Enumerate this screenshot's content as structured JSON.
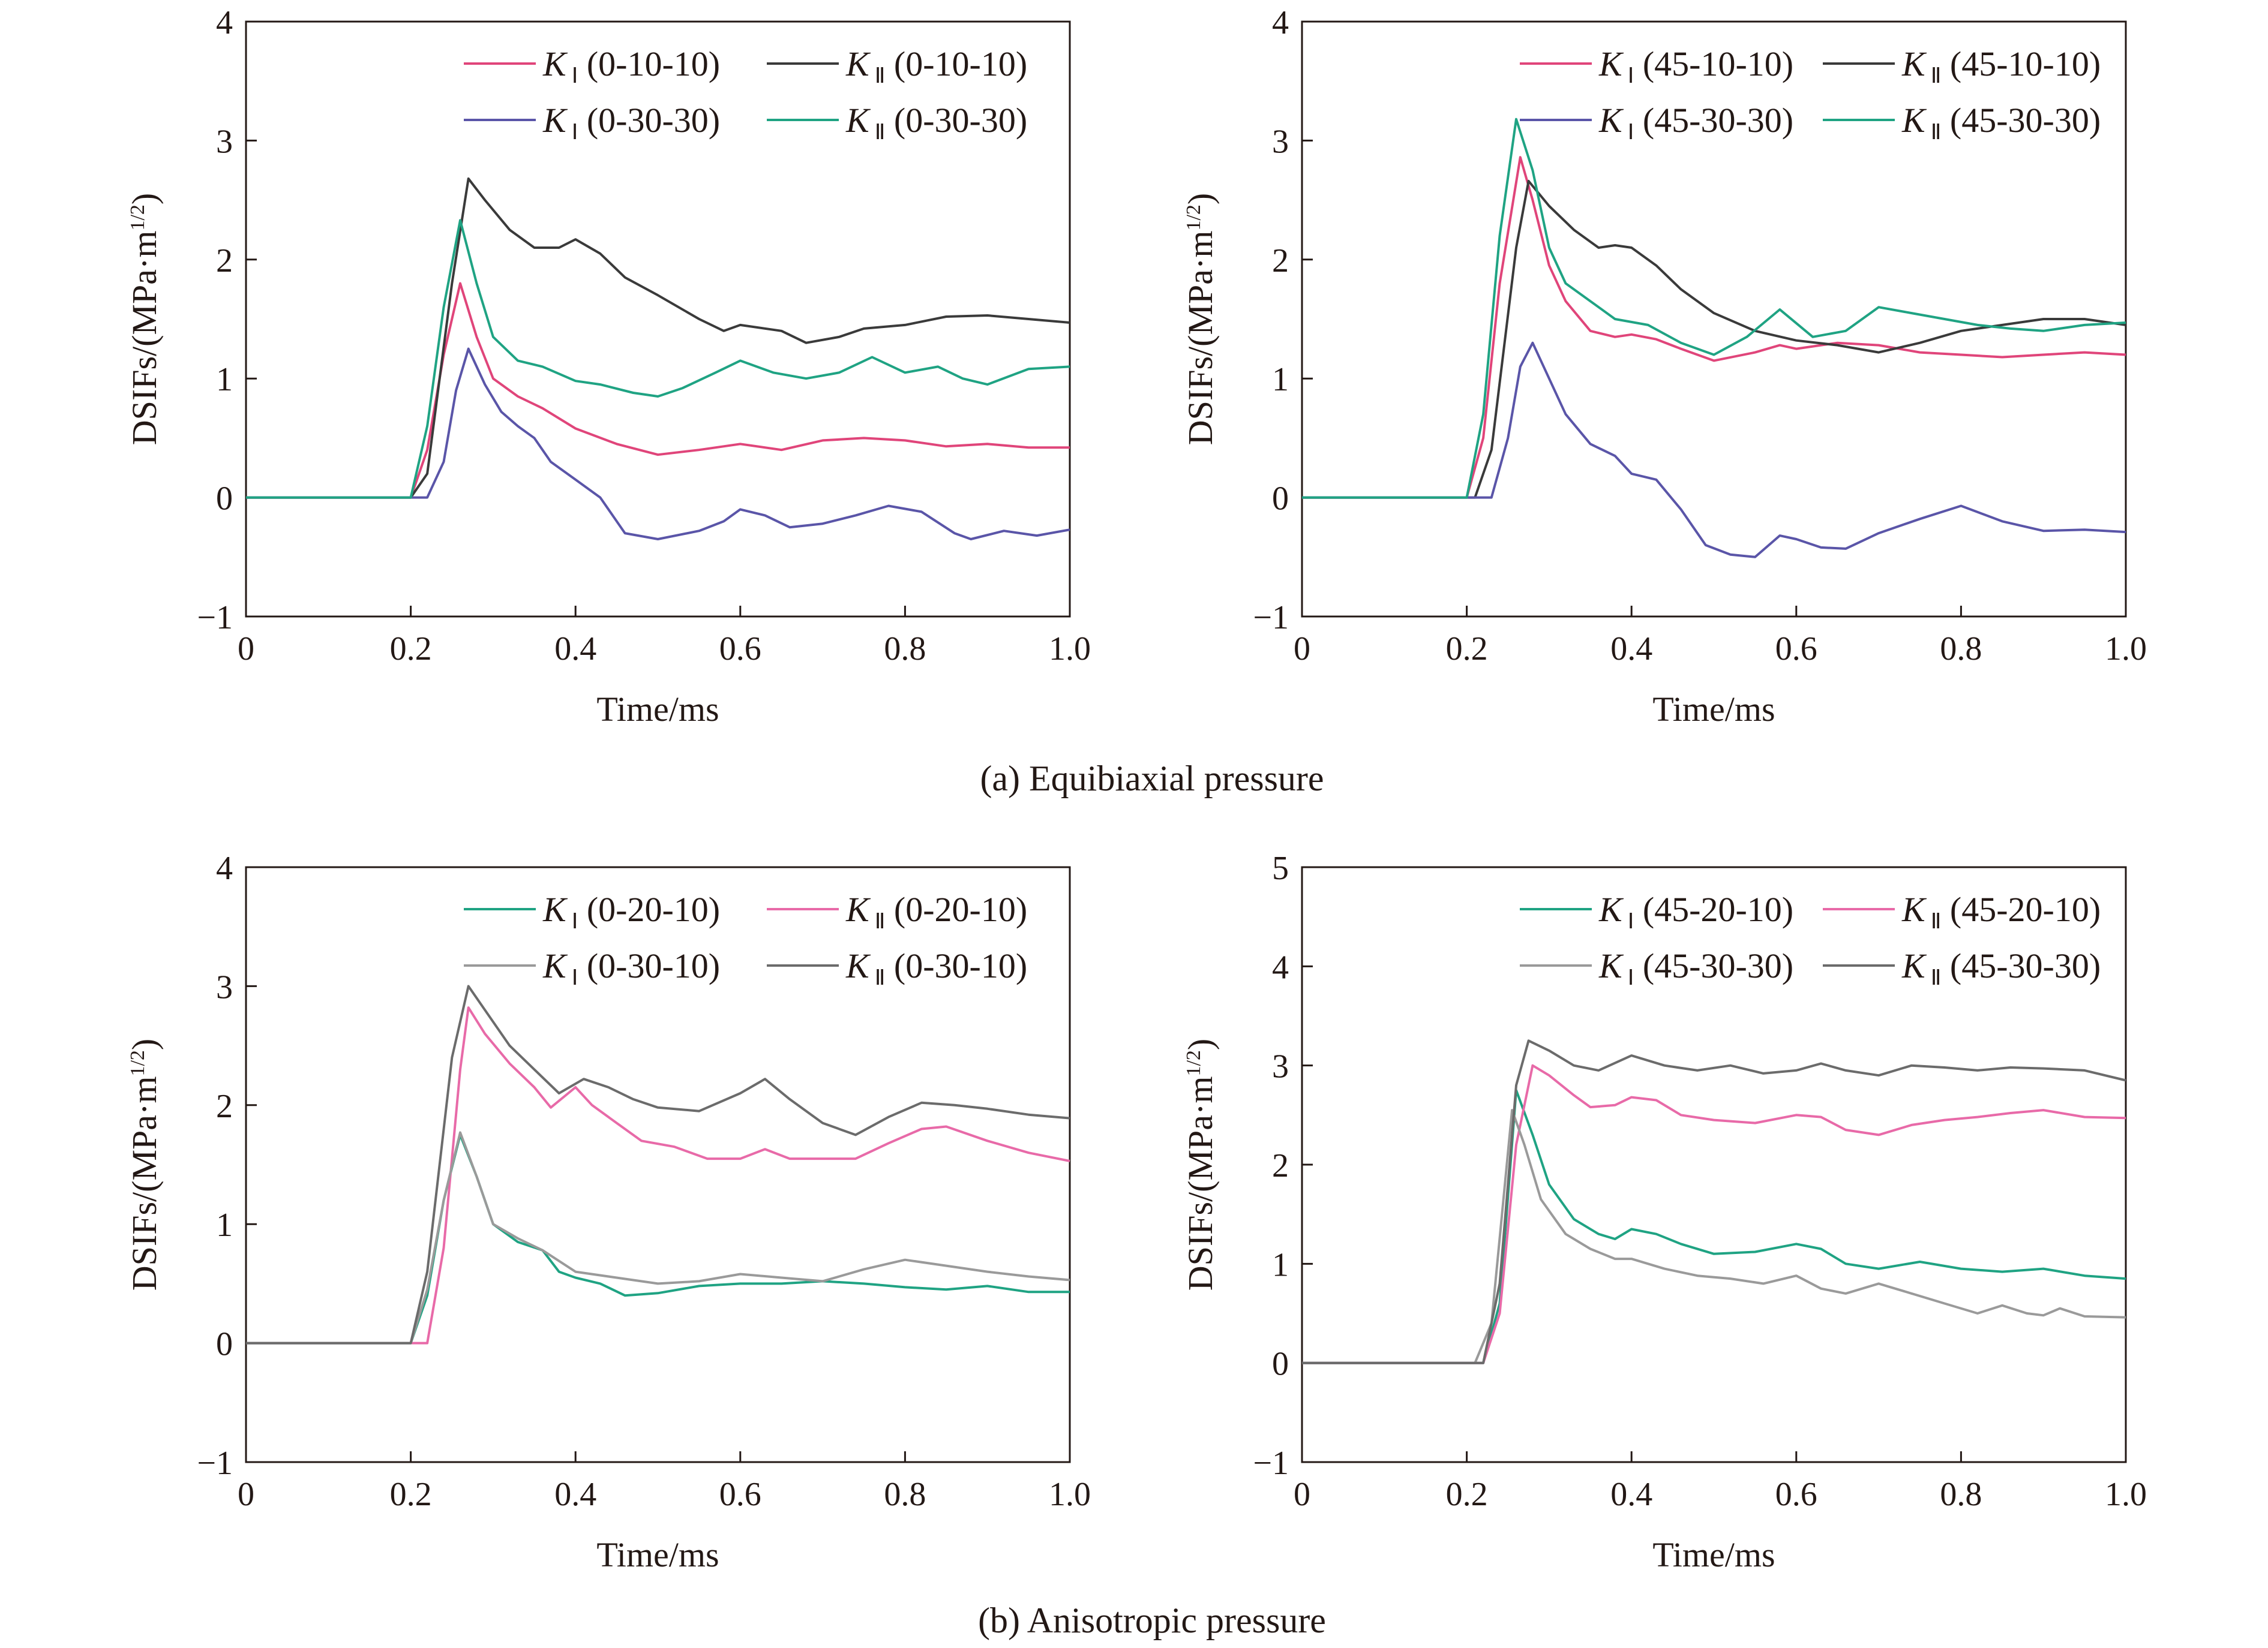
{
  "colors": {
    "red": "#e0457a",
    "black": "#3a3a3a",
    "blue": "#5a55a8",
    "teal": "#1fa383",
    "pink": "#e86aa8",
    "gray": "#9a9a9a",
    "darkgray": "#6b6b6b",
    "orange": "#e8923a"
  },
  "chart_data": [
    {
      "type": "line",
      "panel": "a-left",
      "xlabel": "Time/ms",
      "ylabel": "DSIFs/(MPa·m1/2)",
      "xlim": [
        0,
        1.0
      ],
      "ylim": [
        -1,
        4
      ],
      "xticks": [
        "0",
        "0.2",
        "0.4",
        "0.6",
        "0.8",
        "1.0"
      ],
      "yticks": [
        "−1",
        "0",
        "1",
        "2",
        "3",
        "4"
      ],
      "legend": "top-right",
      "series": [
        {
          "name": "K",
          "sub": "Ⅰ",
          "tag": "(0-10-10)",
          "color": "red",
          "x": [
            0,
            0.2,
            0.22,
            0.24,
            0.26,
            0.28,
            0.3,
            0.33,
            0.36,
            0.4,
            0.45,
            0.5,
            0.55,
            0.6,
            0.65,
            0.7,
            0.75,
            0.8,
            0.85,
            0.9,
            0.95,
            1.0
          ],
          "y": [
            0,
            0,
            0.4,
            1.2,
            1.8,
            1.35,
            1.0,
            0.85,
            0.75,
            0.58,
            0.45,
            0.36,
            0.4,
            0.45,
            0.4,
            0.48,
            0.5,
            0.48,
            0.43,
            0.45,
            0.42,
            0.42
          ]
        },
        {
          "name": "K",
          "sub": "Ⅱ",
          "tag": "(0-10-10)",
          "color": "black",
          "x": [
            0,
            0.2,
            0.22,
            0.25,
            0.27,
            0.29,
            0.32,
            0.35,
            0.38,
            0.4,
            0.43,
            0.46,
            0.5,
            0.55,
            0.58,
            0.6,
            0.65,
            0.68,
            0.72,
            0.75,
            0.8,
            0.85,
            0.9,
            0.95,
            1.0
          ],
          "y": [
            0,
            0,
            0.2,
            1.8,
            2.68,
            2.5,
            2.25,
            2.1,
            2.1,
            2.17,
            2.05,
            1.85,
            1.7,
            1.5,
            1.4,
            1.45,
            1.4,
            1.3,
            1.35,
            1.42,
            1.45,
            1.52,
            1.53,
            1.5,
            1.47
          ]
        },
        {
          "name": "K",
          "sub": "Ⅰ",
          "tag": "(0-30-30)",
          "color": "blue",
          "x": [
            0,
            0.22,
            0.24,
            0.255,
            0.27,
            0.29,
            0.31,
            0.33,
            0.35,
            0.37,
            0.4,
            0.43,
            0.46,
            0.5,
            0.55,
            0.58,
            0.6,
            0.63,
            0.66,
            0.7,
            0.74,
            0.78,
            0.82,
            0.86,
            0.88,
            0.92,
            0.96,
            1.0
          ],
          "y": [
            0,
            0,
            0.3,
            0.9,
            1.25,
            0.95,
            0.72,
            0.6,
            0.5,
            0.3,
            0.15,
            0.0,
            -0.3,
            -0.35,
            -0.28,
            -0.2,
            -0.1,
            -0.15,
            -0.25,
            -0.22,
            -0.15,
            -0.07,
            -0.12,
            -0.3,
            -0.35,
            -0.28,
            -0.32,
            -0.27
          ]
        },
        {
          "name": "K",
          "sub": "Ⅱ",
          "tag": "(0-30-30)",
          "color": "teal",
          "x": [
            0,
            0.2,
            0.22,
            0.24,
            0.26,
            0.28,
            0.3,
            0.33,
            0.36,
            0.4,
            0.43,
            0.47,
            0.5,
            0.53,
            0.57,
            0.6,
            0.64,
            0.68,
            0.72,
            0.76,
            0.8,
            0.84,
            0.87,
            0.9,
            0.95,
            1.0
          ],
          "y": [
            0,
            0,
            0.6,
            1.6,
            2.33,
            1.8,
            1.35,
            1.15,
            1.1,
            0.98,
            0.95,
            0.88,
            0.85,
            0.92,
            1.05,
            1.15,
            1.05,
            1.0,
            1.05,
            1.18,
            1.05,
            1.1,
            1.0,
            0.95,
            1.08,
            1.1
          ]
        }
      ]
    },
    {
      "type": "line",
      "panel": "a-right",
      "xlabel": "Time/ms",
      "ylabel": "DSIFs/(MPa·m1/2)",
      "xlim": [
        0,
        1.0
      ],
      "ylim": [
        -1,
        4
      ],
      "xticks": [
        "0",
        "0.2",
        "0.4",
        "0.6",
        "0.8",
        "1.0"
      ],
      "yticks": [
        "−1",
        "0",
        "1",
        "2",
        "3",
        "4"
      ],
      "legend": "top-right",
      "series": [
        {
          "name": "K",
          "sub": "Ⅰ",
          "tag": "(45-10-10)",
          "color": "red",
          "x": [
            0,
            0.2,
            0.22,
            0.24,
            0.265,
            0.28,
            0.3,
            0.32,
            0.35,
            0.38,
            0.4,
            0.43,
            0.46,
            0.5,
            0.55,
            0.58,
            0.6,
            0.65,
            0.7,
            0.75,
            0.8,
            0.85,
            0.9,
            0.95,
            1.0
          ],
          "y": [
            0,
            0,
            0.5,
            1.8,
            2.86,
            2.5,
            1.95,
            1.65,
            1.4,
            1.35,
            1.37,
            1.33,
            1.25,
            1.15,
            1.22,
            1.28,
            1.25,
            1.3,
            1.28,
            1.22,
            1.2,
            1.18,
            1.2,
            1.22,
            1.2
          ]
        },
        {
          "name": "K",
          "sub": "Ⅱ",
          "tag": "(45-10-10)",
          "color": "black",
          "x": [
            0,
            0.21,
            0.23,
            0.26,
            0.275,
            0.3,
            0.33,
            0.36,
            0.38,
            0.4,
            0.43,
            0.46,
            0.5,
            0.55,
            0.6,
            0.65,
            0.7,
            0.75,
            0.8,
            0.85,
            0.9,
            0.95,
            1.0
          ],
          "y": [
            0,
            0,
            0.4,
            2.1,
            2.66,
            2.45,
            2.25,
            2.1,
            2.12,
            2.1,
            1.95,
            1.75,
            1.55,
            1.4,
            1.32,
            1.28,
            1.22,
            1.3,
            1.4,
            1.45,
            1.5,
            1.5,
            1.45
          ]
        },
        {
          "name": "K",
          "sub": "Ⅰ",
          "tag": "(45-30-30)",
          "color": "blue",
          "x": [
            0,
            0.23,
            0.25,
            0.265,
            0.28,
            0.3,
            0.32,
            0.35,
            0.38,
            0.4,
            0.43,
            0.46,
            0.49,
            0.52,
            0.55,
            0.58,
            0.6,
            0.63,
            0.66,
            0.7,
            0.75,
            0.8,
            0.85,
            0.9,
            0.95,
            1.0
          ],
          "y": [
            0,
            0,
            0.5,
            1.1,
            1.3,
            1.0,
            0.7,
            0.45,
            0.35,
            0.2,
            0.15,
            -0.1,
            -0.4,
            -0.48,
            -0.5,
            -0.32,
            -0.35,
            -0.42,
            -0.43,
            -0.3,
            -0.18,
            -0.07,
            -0.2,
            -0.28,
            -0.27,
            -0.29
          ]
        },
        {
          "name": "K",
          "sub": "Ⅱ",
          "tag": "(45-30-30)",
          "color": "teal",
          "x": [
            0,
            0.2,
            0.22,
            0.24,
            0.26,
            0.28,
            0.3,
            0.32,
            0.35,
            0.38,
            0.42,
            0.46,
            0.5,
            0.54,
            0.58,
            0.62,
            0.66,
            0.7,
            0.74,
            0.78,
            0.82,
            0.86,
            0.9,
            0.95,
            1.0
          ],
          "y": [
            0,
            0,
            0.7,
            2.2,
            3.18,
            2.75,
            2.1,
            1.8,
            1.65,
            1.5,
            1.45,
            1.3,
            1.2,
            1.35,
            1.58,
            1.35,
            1.4,
            1.6,
            1.55,
            1.5,
            1.45,
            1.42,
            1.4,
            1.45,
            1.47
          ]
        }
      ]
    },
    {
      "type": "line",
      "panel": "b-left",
      "xlabel": "Time/ms",
      "ylabel": "DSIFs/(MPa·m1/2)",
      "xlim": [
        0,
        1.0
      ],
      "ylim": [
        -1,
        4
      ],
      "xticks": [
        "0",
        "0.2",
        "0.4",
        "0.6",
        "0.8",
        "1.0"
      ],
      "yticks": [
        "−1",
        "0",
        "1",
        "2",
        "3",
        "4"
      ],
      "legend": "top-right",
      "series": [
        {
          "name": "K",
          "sub": "Ⅰ",
          "tag": "(0-20-10)",
          "color": "teal",
          "x": [
            0,
            0.2,
            0.22,
            0.24,
            0.26,
            0.28,
            0.3,
            0.33,
            0.36,
            0.38,
            0.4,
            0.43,
            0.46,
            0.5,
            0.55,
            0.6,
            0.65,
            0.7,
            0.75,
            0.8,
            0.85,
            0.9,
            0.95,
            1.0
          ],
          "y": [
            0,
            0,
            0.4,
            1.2,
            1.75,
            1.4,
            1.0,
            0.85,
            0.78,
            0.6,
            0.55,
            0.5,
            0.4,
            0.42,
            0.48,
            0.5,
            0.5,
            0.52,
            0.5,
            0.47,
            0.45,
            0.48,
            0.43,
            0.43
          ]
        },
        {
          "name": "K",
          "sub": "Ⅱ",
          "tag": "(0-20-10)",
          "color": "pink",
          "x": [
            0,
            0.22,
            0.24,
            0.26,
            0.27,
            0.29,
            0.32,
            0.35,
            0.37,
            0.4,
            0.42,
            0.45,
            0.48,
            0.52,
            0.56,
            0.6,
            0.63,
            0.66,
            0.7,
            0.74,
            0.78,
            0.82,
            0.85,
            0.9,
            0.95,
            1.0
          ],
          "y": [
            0,
            0,
            0.8,
            2.3,
            2.82,
            2.6,
            2.35,
            2.15,
            1.98,
            2.15,
            2.0,
            1.85,
            1.7,
            1.65,
            1.55,
            1.55,
            1.63,
            1.55,
            1.55,
            1.55,
            1.68,
            1.8,
            1.82,
            1.7,
            1.6,
            1.53
          ]
        },
        {
          "name": "K",
          "sub": "Ⅰ",
          "tag": "(0-30-10)",
          "color": "gray",
          "x": [
            0,
            0.2,
            0.22,
            0.24,
            0.26,
            0.28,
            0.3,
            0.33,
            0.36,
            0.4,
            0.45,
            0.5,
            0.55,
            0.6,
            0.65,
            0.7,
            0.75,
            0.8,
            0.85,
            0.9,
            0.95,
            1.0
          ],
          "y": [
            0,
            0,
            0.45,
            1.2,
            1.77,
            1.4,
            1.0,
            0.88,
            0.78,
            0.6,
            0.55,
            0.5,
            0.52,
            0.58,
            0.55,
            0.52,
            0.62,
            0.7,
            0.65,
            0.6,
            0.56,
            0.53
          ]
        },
        {
          "name": "K",
          "sub": "Ⅱ",
          "tag": "(0-30-10)",
          "color": "darkgray",
          "x": [
            0,
            0.2,
            0.22,
            0.25,
            0.27,
            0.29,
            0.32,
            0.35,
            0.38,
            0.41,
            0.44,
            0.47,
            0.5,
            0.55,
            0.6,
            0.63,
            0.66,
            0.7,
            0.74,
            0.78,
            0.82,
            0.86,
            0.9,
            0.95,
            1.0
          ],
          "y": [
            0,
            0,
            0.6,
            2.4,
            3.0,
            2.8,
            2.5,
            2.3,
            2.1,
            2.22,
            2.15,
            2.05,
            1.98,
            1.95,
            2.1,
            2.22,
            2.05,
            1.85,
            1.75,
            1.9,
            2.02,
            2.0,
            1.97,
            1.92,
            1.89
          ]
        }
      ]
    },
    {
      "type": "line",
      "panel": "b-right",
      "xlabel": "Time/ms",
      "ylabel": "DSIFs/(MPa·m1/2)",
      "xlim": [
        0,
        1.0
      ],
      "ylim": [
        -1,
        5
      ],
      "xticks": [
        "0",
        "0.2",
        "0.4",
        "0.6",
        "0.8",
        "1.0"
      ],
      "yticks": [
        "−1",
        "0",
        "1",
        "2",
        "3",
        "4",
        "5"
      ],
      "legend": "top-right",
      "series": [
        {
          "name": "K",
          "sub": "Ⅰ",
          "tag": "(45-20-10)",
          "color": "teal",
          "x": [
            0,
            0.22,
            0.24,
            0.26,
            0.28,
            0.3,
            0.33,
            0.36,
            0.38,
            0.4,
            0.43,
            0.46,
            0.5,
            0.55,
            0.6,
            0.63,
            0.66,
            0.7,
            0.75,
            0.8,
            0.85,
            0.9,
            0.95,
            1.0
          ],
          "y": [
            0,
            0,
            0.6,
            2.75,
            2.3,
            1.8,
            1.45,
            1.3,
            1.25,
            1.35,
            1.3,
            1.2,
            1.1,
            1.12,
            1.2,
            1.15,
            1.0,
            0.95,
            1.02,
            0.95,
            0.92,
            0.95,
            0.88,
            0.85
          ]
        },
        {
          "name": "K",
          "sub": "Ⅱ",
          "tag": "(45-20-10)",
          "color": "pink",
          "x": [
            0,
            0.22,
            0.24,
            0.26,
            0.28,
            0.3,
            0.33,
            0.35,
            0.38,
            0.4,
            0.43,
            0.46,
            0.5,
            0.55,
            0.6,
            0.63,
            0.66,
            0.7,
            0.74,
            0.78,
            0.82,
            0.86,
            0.9,
            0.95,
            1.0
          ],
          "y": [
            0,
            0,
            0.5,
            2.2,
            3.0,
            2.9,
            2.7,
            2.58,
            2.6,
            2.68,
            2.65,
            2.5,
            2.45,
            2.42,
            2.5,
            2.48,
            2.35,
            2.3,
            2.4,
            2.45,
            2.48,
            2.52,
            2.55,
            2.48,
            2.47
          ]
        },
        {
          "name": "K",
          "sub": "Ⅰ",
          "tag": "(45-30-30)",
          "color": "gray",
          "x": [
            0,
            0.21,
            0.23,
            0.255,
            0.27,
            0.29,
            0.32,
            0.35,
            0.38,
            0.4,
            0.44,
            0.48,
            0.52,
            0.56,
            0.6,
            0.63,
            0.66,
            0.7,
            0.74,
            0.78,
            0.82,
            0.85,
            0.88,
            0.9,
            0.92,
            0.95,
            1.0
          ],
          "y": [
            0,
            0,
            0.4,
            2.55,
            2.2,
            1.65,
            1.3,
            1.15,
            1.05,
            1.05,
            0.95,
            0.88,
            0.85,
            0.8,
            0.88,
            0.75,
            0.7,
            0.8,
            0.7,
            0.6,
            0.5,
            0.58,
            0.5,
            0.48,
            0.55,
            0.47,
            0.46
          ]
        },
        {
          "name": "K",
          "sub": "Ⅱ",
          "tag": "(45-30-30)",
          "color": "darkgray",
          "x": [
            0,
            0.22,
            0.24,
            0.26,
            0.275,
            0.3,
            0.33,
            0.36,
            0.4,
            0.44,
            0.48,
            0.52,
            0.56,
            0.6,
            0.63,
            0.66,
            0.7,
            0.74,
            0.78,
            0.82,
            0.86,
            0.9,
            0.95,
            1.0
          ],
          "y": [
            0,
            0,
            0.8,
            2.8,
            3.25,
            3.15,
            3.0,
            2.95,
            3.1,
            3.0,
            2.95,
            3.0,
            2.92,
            2.95,
            3.02,
            2.95,
            2.9,
            3.0,
            2.98,
            2.95,
            2.98,
            2.97,
            2.95,
            2.85
          ]
        }
      ]
    }
  ],
  "captions": {
    "a": "(a) Equibiaxial pressure",
    "b": "(b) Anisotropic pressure"
  }
}
